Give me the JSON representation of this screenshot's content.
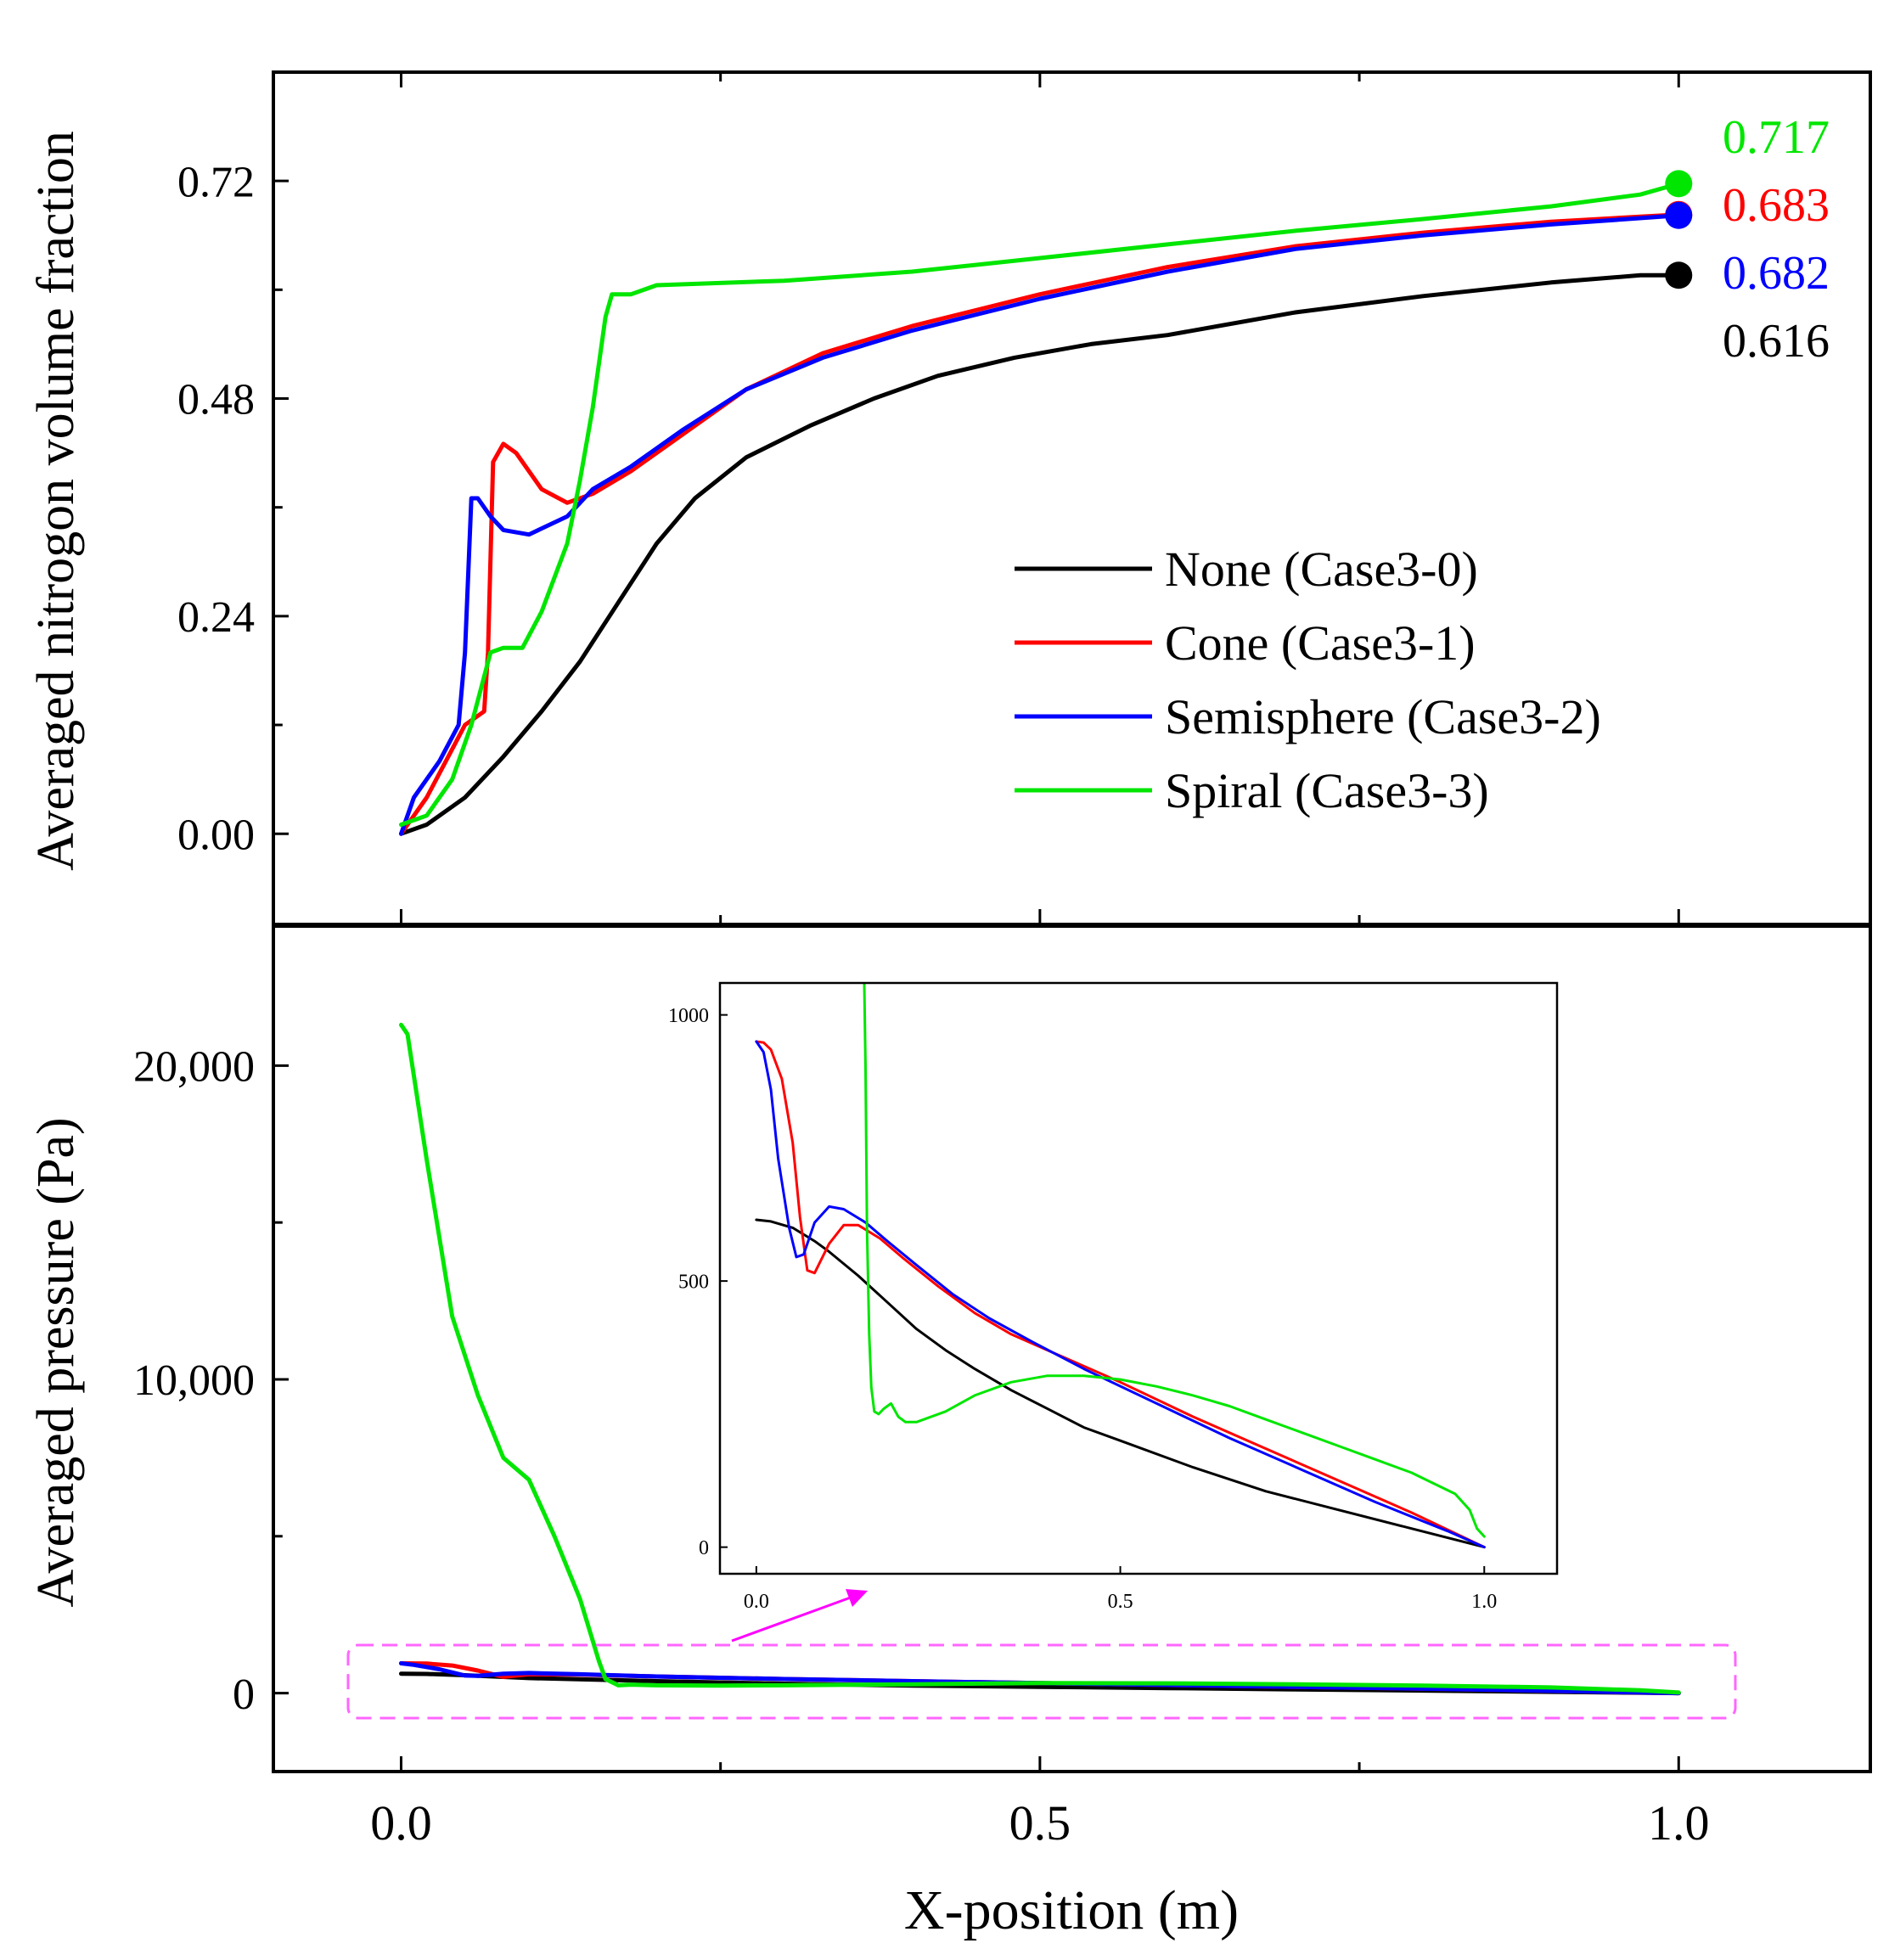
{
  "chart_data": [
    {
      "type": "line",
      "title": "",
      "xlabel": "X-position (m)",
      "ylabel": "Averaged nitrogon volume fraction",
      "xlim": [
        -0.1,
        1.15
      ],
      "ylim": [
        -0.1,
        0.84
      ],
      "xticks": [
        "0.0",
        "0.5",
        "1.0"
      ],
      "yticks": [
        "0.00",
        "0.24",
        "0.48",
        "0.72"
      ],
      "ytick_values": [
        0,
        0.24,
        0.48,
        0.72
      ],
      "grid": false,
      "legend_position": "center-right",
      "series": [
        {
          "name": "None (Case3-0)",
          "color": "#000000",
          "x": [
            0,
            0.02,
            0.05,
            0.08,
            0.11,
            0.14,
            0.17,
            0.2,
            0.23,
            0.27,
            0.32,
            0.37,
            0.42,
            0.48,
            0.54,
            0.6,
            0.7,
            0.8,
            0.9,
            0.97,
            1.0
          ],
          "y": [
            0,
            0.01,
            0.04,
            0.085,
            0.135,
            0.19,
            0.255,
            0.32,
            0.37,
            0.415,
            0.45,
            0.48,
            0.505,
            0.525,
            0.54,
            0.55,
            0.575,
            0.593,
            0.608,
            0.616,
            0.616
          ]
        },
        {
          "name": "Cone (Case3-1)",
          "color": "#ff0000",
          "x": [
            0,
            0.02,
            0.05,
            0.065,
            0.068,
            0.072,
            0.08,
            0.09,
            0.11,
            0.13,
            0.15,
            0.18,
            0.22,
            0.27,
            0.33,
            0.4,
            0.5,
            0.6,
            0.7,
            0.8,
            0.9,
            1.0
          ],
          "y": [
            0,
            0.04,
            0.12,
            0.135,
            0.2,
            0.41,
            0.43,
            0.42,
            0.38,
            0.365,
            0.375,
            0.4,
            0.44,
            0.49,
            0.53,
            0.56,
            0.595,
            0.625,
            0.648,
            0.663,
            0.675,
            0.683
          ]
        },
        {
          "name": "Semisphere (Case3-2)",
          "color": "#0000ff",
          "x": [
            0,
            0.01,
            0.03,
            0.045,
            0.05,
            0.055,
            0.06,
            0.07,
            0.08,
            0.1,
            0.13,
            0.15,
            0.18,
            0.22,
            0.27,
            0.33,
            0.4,
            0.5,
            0.6,
            0.7,
            0.8,
            0.9,
            1.0
          ],
          "y": [
            0,
            0.04,
            0.08,
            0.12,
            0.2,
            0.37,
            0.37,
            0.35,
            0.335,
            0.33,
            0.35,
            0.38,
            0.405,
            0.445,
            0.49,
            0.525,
            0.555,
            0.59,
            0.62,
            0.645,
            0.66,
            0.672,
            0.682
          ]
        },
        {
          "name": "Spiral (Case3-3)",
          "color": "#00e600",
          "x": [
            0,
            0.02,
            0.04,
            0.055,
            0.07,
            0.08,
            0.095,
            0.11,
            0.13,
            0.14,
            0.15,
            0.16,
            0.165,
            0.18,
            0.2,
            0.3,
            0.4,
            0.5,
            0.6,
            0.7,
            0.8,
            0.9,
            0.97,
            1.0
          ],
          "y": [
            0.01,
            0.02,
            0.06,
            0.12,
            0.2,
            0.205,
            0.205,
            0.245,
            0.32,
            0.39,
            0.47,
            0.57,
            0.595,
            0.595,
            0.605,
            0.61,
            0.62,
            0.635,
            0.65,
            0.665,
            0.678,
            0.692,
            0.705,
            0.717
          ]
        }
      ],
      "end_labels": [
        {
          "text": "0.717",
          "color": "#00e600"
        },
        {
          "text": "0.683",
          "color": "#ff0000"
        },
        {
          "text": "0.682",
          "color": "#0000ff"
        },
        {
          "text": "0.616",
          "color": "#000000"
        }
      ]
    },
    {
      "type": "line",
      "title": "",
      "xlabel": "X-position (m)",
      "ylabel": "Averaged pressure (Pa)",
      "xlim": [
        -0.1,
        1.15
      ],
      "ylim": [
        -2500,
        24500
      ],
      "xticks": [
        "0.0",
        "0.5",
        "1.0"
      ],
      "yticks": [
        "0",
        "10,000",
        "20,000"
      ],
      "ytick_values": [
        0,
        10000,
        20000
      ],
      "grid": false,
      "series": [
        {
          "name": "None (Case3-0)",
          "color": "#000000",
          "x": [
            0,
            0.02,
            0.05,
            0.1,
            0.2,
            0.3,
            0.4,
            0.5,
            0.6,
            0.7,
            0.8,
            0.9,
            1.0
          ],
          "y": [
            620,
            610,
            570,
            480,
            380,
            300,
            240,
            200,
            160,
            120,
            80,
            40,
            0
          ]
        },
        {
          "name": "Cone (Case3-1)",
          "color": "#ff0000",
          "x": [
            0,
            0.02,
            0.04,
            0.06,
            0.08,
            0.1,
            0.14,
            0.2,
            0.3,
            0.4,
            0.5,
            0.6,
            0.7,
            0.8,
            0.9,
            1.0
          ],
          "y": [
            950,
            940,
            880,
            720,
            520,
            600,
            590,
            530,
            450,
            380,
            320,
            260,
            200,
            140,
            70,
            0
          ]
        },
        {
          "name": "Semisphere (Case3-2)",
          "color": "#0000ff",
          "x": [
            0,
            0.01,
            0.03,
            0.05,
            0.06,
            0.08,
            0.1,
            0.14,
            0.2,
            0.3,
            0.4,
            0.5,
            0.6,
            0.7,
            0.8,
            0.9,
            1.0
          ],
          "y": [
            950,
            900,
            760,
            560,
            550,
            620,
            640,
            600,
            530,
            450,
            380,
            320,
            260,
            200,
            140,
            70,
            0
          ]
        },
        {
          "name": "Spiral (Case3-3)",
          "color": "#00e600",
          "x": [
            0,
            0.005,
            0.02,
            0.04,
            0.06,
            0.08,
            0.1,
            0.12,
            0.14,
            0.155,
            0.16,
            0.17,
            0.18,
            0.2,
            0.25,
            0.3,
            0.4,
            0.5,
            0.6,
            0.7,
            0.8,
            0.9,
            0.97,
            1.0
          ],
          "y": [
            21300,
            21000,
            17000,
            12000,
            9500,
            7500,
            6800,
            5000,
            3000,
            1000,
            450,
            250,
            270,
            250,
            240,
            250,
            280,
            320,
            310,
            280,
            240,
            180,
            90,
            20
          ]
        }
      ]
    },
    {
      "type": "line",
      "title": "",
      "xlabel": "",
      "ylabel": "",
      "xlim": [
        -0.05,
        1.1
      ],
      "ylim": [
        -50,
        1060
      ],
      "xticks": [
        "0.0",
        "0.5",
        "1.0"
      ],
      "yticks": [
        "0",
        "500",
        "1000"
      ],
      "ytick_values": [
        0,
        500,
        1000
      ],
      "grid": false,
      "series": [
        {
          "name": "None (Case3-0)",
          "color": "#000000",
          "x": [
            0,
            0.02,
            0.05,
            0.08,
            0.1,
            0.14,
            0.18,
            0.22,
            0.26,
            0.3,
            0.35,
            0.4,
            0.45,
            0.5,
            0.6,
            0.7,
            0.8,
            0.9,
            1.0
          ],
          "y": [
            615,
            612,
            600,
            575,
            555,
            510,
            460,
            410,
            370,
            335,
            295,
            260,
            225,
            200,
            150,
            105,
            70,
            35,
            0
          ]
        },
        {
          "name": "Cone (Case3-1)",
          "color": "#ff0000",
          "x": [
            0,
            0.01,
            0.02,
            0.035,
            0.05,
            0.06,
            0.07,
            0.08,
            0.1,
            0.12,
            0.14,
            0.17,
            0.2,
            0.25,
            0.3,
            0.35,
            0.4,
            0.5,
            0.6,
            0.7,
            0.8,
            0.9,
            1.0
          ],
          "y": [
            950,
            948,
            935,
            880,
            760,
            620,
            520,
            515,
            570,
            605,
            605,
            580,
            545,
            490,
            440,
            400,
            370,
            310,
            245,
            185,
            125,
            65,
            0
          ]
        },
        {
          "name": "Semisphere (Case3-2)",
          "color": "#0000ff",
          "x": [
            0,
            0.01,
            0.02,
            0.03,
            0.045,
            0.055,
            0.065,
            0.08,
            0.1,
            0.12,
            0.15,
            0.18,
            0.22,
            0.27,
            0.32,
            0.38,
            0.45,
            0.55,
            0.65,
            0.75,
            0.85,
            0.95,
            1.0
          ],
          "y": [
            950,
            930,
            860,
            730,
            600,
            545,
            550,
            610,
            640,
            635,
            610,
            575,
            530,
            475,
            430,
            385,
            335,
            270,
            205,
            145,
            85,
            30,
            0
          ]
        },
        {
          "name": "Spiral (Case3-3)",
          "color": "#00e600",
          "x": [
            0.148,
            0.15,
            0.152,
            0.155,
            0.158,
            0.162,
            0.168,
            0.175,
            0.185,
            0.195,
            0.205,
            0.22,
            0.26,
            0.3,
            0.35,
            0.4,
            0.45,
            0.5,
            0.55,
            0.6,
            0.65,
            0.7,
            0.75,
            0.8,
            0.85,
            0.9,
            0.93,
            0.96,
            0.98,
            0.99,
            1.0
          ],
          "y": [
            1080,
            900,
            600,
            400,
            300,
            255,
            250,
            260,
            270,
            245,
            235,
            235,
            255,
            285,
            310,
            322,
            322,
            315,
            302,
            285,
            265,
            240,
            215,
            190,
            165,
            140,
            120,
            100,
            70,
            35,
            20
          ]
        }
      ]
    }
  ]
}
